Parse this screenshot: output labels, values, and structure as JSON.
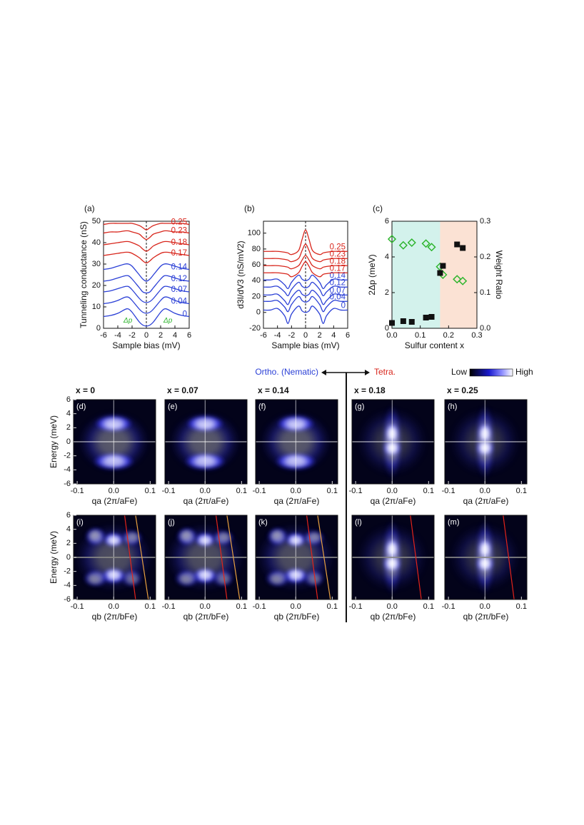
{
  "header": {
    "ortho": "Ortho. (Nematic)",
    "tetra": "Tetra.",
    "low": "Low",
    "high": "High"
  },
  "chart_data": [
    {
      "type": "line",
      "title": "(a)",
      "xlabel": "Sample bias (mV)",
      "ylabel": "Tunneling conductance (nS)",
      "annotations": [
        "Δp",
        "Δp"
      ],
      "x": [
        -6,
        -5,
        -4,
        -3,
        -2.5,
        -2,
        -1,
        -0.5,
        0,
        0.5,
        1,
        2,
        2.5,
        3,
        4,
        5,
        6
      ],
      "xlim": [
        -6,
        6
      ],
      "ylim": [
        0,
        50
      ],
      "xticks": [
        -6,
        -4,
        -2,
        0,
        2,
        4,
        6
      ],
      "yticks": [
        0,
        10,
        20,
        30,
        40,
        50
      ],
      "series": [
        {
          "name": "0",
          "color": "#2a3fd6",
          "values": [
            5.5,
            6,
            7,
            8.8,
            9,
            7.5,
            3,
            1.5,
            1,
            1.5,
            3,
            7.5,
            9,
            8.8,
            7,
            6,
            5.5
          ]
        },
        {
          "name": "0.04",
          "color": "#2a3fd6",
          "values": [
            11.5,
            12,
            13,
            14.5,
            14.5,
            13,
            9,
            7.5,
            7,
            7.5,
            9,
            13,
            14.5,
            14.5,
            13,
            12,
            11.5
          ]
        },
        {
          "name": "0.07",
          "color": "#2a3fd6",
          "values": [
            17,
            17.5,
            18.5,
            19.5,
            19.5,
            18,
            14,
            12.5,
            12,
            12.5,
            14,
            18,
            19.5,
            19.5,
            18.5,
            17.5,
            17
          ]
        },
        {
          "name": "0.12",
          "color": "#2a3fd6",
          "values": [
            22,
            22.5,
            23.5,
            24.5,
            24.5,
            23,
            19,
            17,
            16.5,
            17,
            19,
            23,
            24.5,
            24.5,
            23.5,
            22.5,
            22
          ]
        },
        {
          "name": "0.14",
          "color": "#2a3fd6",
          "values": [
            27.5,
            28,
            29,
            30,
            30,
            29,
            25,
            23,
            22,
            23,
            25,
            29,
            30,
            30,
            29,
            28,
            27.5
          ]
        },
        {
          "name": "0.17",
          "color": "#d8261c",
          "values": [
            34,
            34.5,
            35,
            35.5,
            35.5,
            35,
            33,
            31.5,
            30.5,
            31.5,
            33,
            35,
            35.5,
            35.5,
            35,
            34.5,
            34
          ]
        },
        {
          "name": "0.18",
          "color": "#d8261c",
          "values": [
            39,
            39.5,
            40,
            40.5,
            40.5,
            40,
            38.5,
            37,
            36,
            37,
            38.5,
            40,
            40.5,
            40.5,
            40,
            39.5,
            39
          ]
        },
        {
          "name": "0.23",
          "color": "#d8261c",
          "values": [
            44.5,
            45,
            45,
            45.5,
            45.5,
            45,
            44,
            42.5,
            41.5,
            42.5,
            44,
            45,
            45.5,
            45.5,
            45,
            45,
            44.5
          ]
        },
        {
          "name": "0.25",
          "color": "#d8261c",
          "values": [
            48.5,
            49,
            49,
            49,
            49,
            49,
            48,
            47,
            46,
            47,
            48,
            49,
            49,
            49,
            49,
            49,
            48.5
          ]
        }
      ]
    },
    {
      "type": "line",
      "title": "(b)",
      "xlabel": "Sample bias (mV)",
      "ylabel": "d3I/dV3 (nS/mV2)",
      "x": [
        -6,
        -5,
        -4,
        -3,
        -2.5,
        -2,
        -1,
        -0.5,
        0,
        0.5,
        1,
        2,
        2.5,
        3,
        4,
        5,
        6
      ],
      "xlim": [
        -6,
        6
      ],
      "ylim": [
        -20,
        115
      ],
      "xticks": [
        -6,
        -4,
        -2,
        0,
        2,
        4,
        6
      ],
      "yticks": [
        -20,
        0,
        20,
        40,
        60,
        80,
        100
      ],
      "series": [
        {
          "name": "0",
          "color": "#2a3fd6",
          "values": [
            3,
            3,
            5,
            -4,
            -14,
            -2,
            8,
            2,
            0,
            2,
            8,
            -2,
            -14,
            -4,
            5,
            3,
            3
          ]
        },
        {
          "name": "0.04",
          "color": "#2a3fd6",
          "values": [
            14,
            14,
            15,
            7,
            1,
            10,
            20,
            15,
            13,
            15,
            20,
            10,
            1,
            7,
            15,
            14,
            14
          ]
        },
        {
          "name": "0.07",
          "color": "#2a3fd6",
          "values": [
            22,
            22,
            23,
            15,
            10,
            19,
            28,
            23,
            21,
            23,
            28,
            19,
            10,
            15,
            23,
            22,
            22
          ]
        },
        {
          "name": "0.12",
          "color": "#2a3fd6",
          "values": [
            32,
            32,
            33,
            26,
            21,
            29,
            38,
            33,
            31,
            33,
            38,
            29,
            21,
            26,
            33,
            32,
            32
          ]
        },
        {
          "name": "0.14",
          "color": "#2a3fd6",
          "values": [
            41,
            41,
            42,
            35,
            30,
            38,
            47,
            42,
            40,
            42,
            47,
            38,
            30,
            35,
            42,
            41,
            41
          ]
        },
        {
          "name": "0.17",
          "color": "#d8261c",
          "values": [
            50,
            50,
            50,
            49,
            48,
            45,
            50,
            58,
            64,
            58,
            50,
            45,
            48,
            49,
            50,
            50,
            50
          ]
        },
        {
          "name": "0.18",
          "color": "#d8261c",
          "values": [
            59,
            59,
            59,
            58,
            57,
            55,
            59,
            66,
            72,
            66,
            59,
            55,
            57,
            58,
            59,
            59,
            59
          ]
        },
        {
          "name": "0.23",
          "color": "#d8261c",
          "values": [
            68,
            68,
            68,
            67,
            66,
            64,
            68,
            78,
            86,
            78,
            68,
            64,
            66,
            67,
            68,
            68,
            68
          ]
        },
        {
          "name": "0.25",
          "color": "#d8261c",
          "values": [
            77,
            77,
            77,
            76,
            75,
            73,
            78,
            92,
            104,
            92,
            78,
            73,
            75,
            76,
            77,
            77,
            77
          ]
        }
      ]
    },
    {
      "type": "scatter",
      "title": "(c)",
      "xlabel": "Sulfur content x",
      "ylabel": "2Δp (meV)",
      "y2label": "Weight Ratio",
      "x": [
        0,
        0.04,
        0.07,
        0.12,
        0.14,
        0.17,
        0.18,
        0.23,
        0.25
      ],
      "xlim": [
        0,
        0.3
      ],
      "ylim": [
        0,
        6
      ],
      "y2lim": [
        0,
        0.3
      ],
      "xticks": [
        {
          "value": 0,
          "label": "0.0"
        },
        0.1,
        0.2,
        0.3
      ],
      "yticks": [
        0,
        2,
        4,
        6
      ],
      "y2ticks": [
        {
          "value": 0,
          "label": "0.0"
        },
        0.1,
        0.2,
        0.3
      ],
      "regions": [
        {
          "from": 0,
          "to": 0.17,
          "color": "#d3f2ec"
        },
        {
          "from": 0.17,
          "to": 0.3,
          "color": "#fbe2d4"
        }
      ],
      "series": [
        {
          "color": "#2db52d",
          "marker": "diamond",
          "values": [
            5.0,
            4.65,
            4.8,
            4.75,
            4.55,
            3.45,
            3.0,
            2.75,
            2.65
          ]
        },
        {
          "color": "#111111",
          "marker": "square",
          "axis": "y2",
          "values": [
            0.015,
            0.02,
            0.018,
            0.03,
            0.032,
            0.155,
            0.175,
            0.235,
            0.225
          ]
        }
      ]
    },
    {
      "type": "heatmap",
      "title": "(d)",
      "subtitle": "x = 0",
      "xlabel": "qa (2π/aFe)",
      "ylabel": "Energy (meV)",
      "xlim": [
        -0.11,
        0.115
      ],
      "ylim": [
        -6,
        6
      ],
      "xticks": [
        -0.1,
        {
          "value": 0,
          "label": "0.0"
        },
        0.1
      ],
      "yticks": [
        -6,
        -4,
        -2,
        0,
        2,
        4,
        6
      ]
    },
    {
      "type": "heatmap",
      "title": "(e)",
      "subtitle": "x = 0.07",
      "xlabel": "qa (2π/aFe)",
      "xlim": [
        -0.11,
        0.115
      ],
      "ylim": [
        -6,
        6
      ],
      "xticks": [
        -0.1,
        {
          "value": 0,
          "label": "0.0"
        },
        0.1
      ]
    },
    {
      "type": "heatmap",
      "title": "(f)",
      "subtitle": "x = 0.14",
      "xlabel": "qa (2π/aFe)",
      "xlim": [
        -0.11,
        0.115
      ],
      "ylim": [
        -6,
        6
      ],
      "xticks": [
        -0.1,
        {
          "value": 0,
          "label": "0.0"
        },
        0.1
      ]
    },
    {
      "type": "heatmap",
      "title": "(g)",
      "subtitle": "x = 0.18",
      "xlabel": "qa (2π/aFe)",
      "xlim": [
        -0.11,
        0.115
      ],
      "ylim": [
        -6,
        6
      ],
      "xticks": [
        -0.1,
        {
          "value": 0,
          "label": "0.0"
        },
        0.1
      ]
    },
    {
      "type": "heatmap",
      "title": "(h)",
      "subtitle": "x = 0.25",
      "xlabel": "qa (2π/aFe)",
      "xlim": [
        -0.11,
        0.115
      ],
      "ylim": [
        -6,
        6
      ],
      "xticks": [
        -0.1,
        {
          "value": 0,
          "label": "0.0"
        },
        0.1
      ]
    },
    {
      "type": "heatmap",
      "title": "(i)",
      "xlabel": "qb (2π/bFe)",
      "ylabel": "Energy (meV)",
      "xlim": [
        -0.11,
        0.115
      ],
      "ylim": [
        -6,
        6
      ],
      "xticks": [
        -0.1,
        {
          "value": 0,
          "label": "0.0"
        },
        0.1
      ],
      "yticks": [
        -6,
        -4,
        -2,
        0,
        2,
        4,
        6
      ]
    },
    {
      "type": "heatmap",
      "title": "(j)",
      "xlabel": "qb (2π/bFe)",
      "xlim": [
        -0.11,
        0.115
      ],
      "ylim": [
        -6,
        6
      ],
      "xticks": [
        -0.1,
        {
          "value": 0,
          "label": "0.0"
        },
        0.1
      ]
    },
    {
      "type": "heatmap",
      "title": "(k)",
      "xlabel": "qb (2π/bFe)",
      "xlim": [
        -0.11,
        0.115
      ],
      "ylim": [
        -6,
        6
      ],
      "xticks": [
        -0.1,
        {
          "value": 0,
          "label": "0.0"
        },
        0.1
      ]
    },
    {
      "type": "heatmap",
      "title": "(l)",
      "xlabel": "qb (2π/bFe)",
      "xlim": [
        -0.11,
        0.115
      ],
      "ylim": [
        -6,
        6
      ],
      "xticks": [
        -0.1,
        {
          "value": 0,
          "label": "0.0"
        },
        0.1
      ]
    },
    {
      "type": "heatmap",
      "title": "(m)",
      "xlabel": "qb (2π/bFe)",
      "xlim": [
        -0.11,
        0.115
      ],
      "ylim": [
        -6,
        6
      ],
      "xticks": [
        -0.1,
        {
          "value": 0,
          "label": "0.0"
        },
        0.1
      ]
    }
  ]
}
